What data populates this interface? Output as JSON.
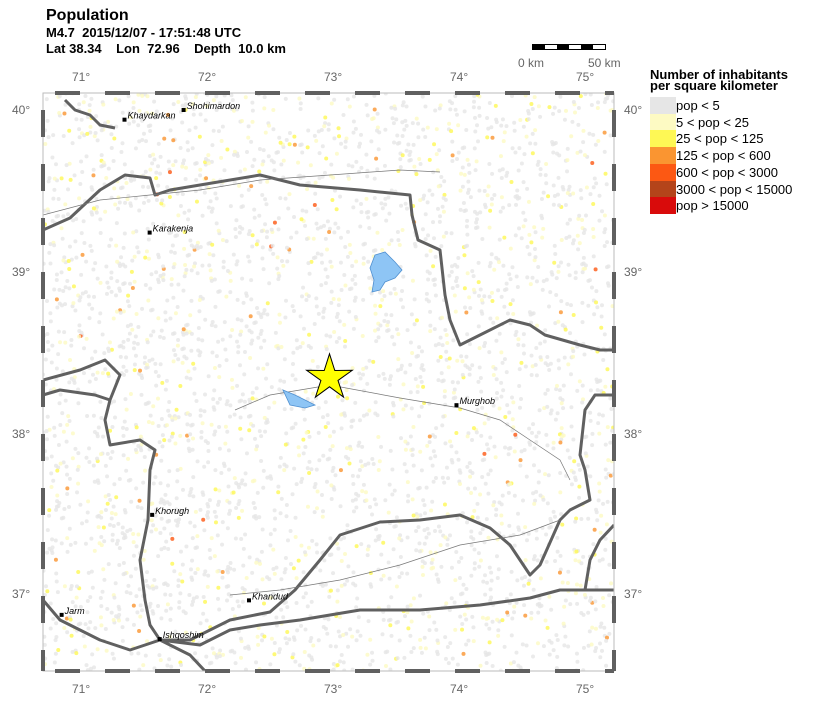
{
  "header": {
    "title": "Population",
    "event": "M4.7  2015/12/07 - 17:51:48 UTC",
    "location": "Lat 38.34    Lon  72.96    Depth  10.0 km"
  },
  "scale_bar": {
    "start": "0 km",
    "end": "50 km"
  },
  "lon_ticks": [
    "71°",
    "72°",
    "73°",
    "74°",
    "75°"
  ],
  "lat_ticks": [
    "40°",
    "39°",
    "38°",
    "37°"
  ],
  "epicenter": {
    "lat": 38.34,
    "lon": 72.96,
    "color": "#ffff00"
  },
  "legend": {
    "title_line1": "Number of inhabitants",
    "title_line2": "per square kilometer",
    "items": [
      {
        "label": "pop < 5",
        "color": "#e6e6e6"
      },
      {
        "label": "5 < pop < 25",
        "color": "#fdfac3"
      },
      {
        "label": "25 < pop < 125",
        "color": "#fef855"
      },
      {
        "label": "125 < pop < 600",
        "color": "#fa9531"
      },
      {
        "label": "600 < pop < 3000",
        "color": "#fc5813"
      },
      {
        "label": "3000 < pop < 15000",
        "color": "#b4441a"
      },
      {
        "label": "pop > 15000",
        "color": "#d90b0b"
      }
    ]
  },
  "cities": [
    {
      "name": "Khaydarkan",
      "lat": 39.94,
      "lon": 71.33
    },
    {
      "name": "Shohimardon",
      "lat": 40.0,
      "lon": 71.8
    },
    {
      "name": "Karakenja",
      "lat": 39.24,
      "lon": 71.53
    },
    {
      "name": "Murghob",
      "lat": 38.17,
      "lon": 73.97
    },
    {
      "name": "Khorugh",
      "lat": 37.49,
      "lon": 71.55
    },
    {
      "name": "Khandud",
      "lat": 36.96,
      "lon": 72.32
    },
    {
      "name": "Jarm",
      "lat": 36.87,
      "lon": 70.83
    },
    {
      "name": "Ishqoshim",
      "lat": 36.72,
      "lon": 71.61
    }
  ]
}
